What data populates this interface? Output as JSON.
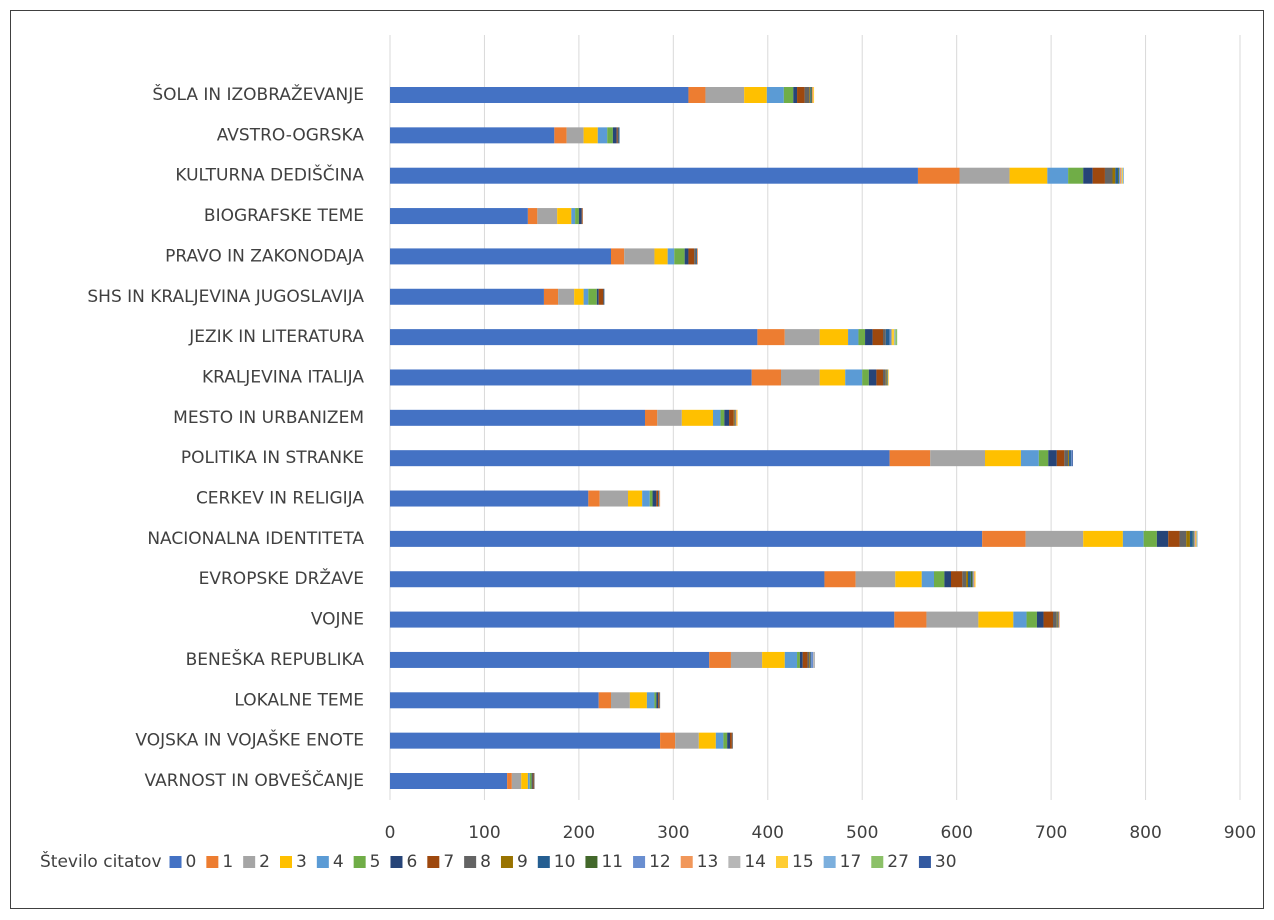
{
  "chart_data": {
    "type": "bar",
    "orientation": "horizontal",
    "stacked": true,
    "categories": [
      "ŠOLA  IN IZOBRAŽEVANJE",
      "AVSTRO-OGRSKA",
      "KULTURNA DEDIŠČINA",
      "BIOGRAFSKE TEME",
      "PRAVO IN ZAKONODAJA",
      "SHS IN KRALJEVINA JUGOSLAVIJA",
      "JEZIK IN LITERATURA",
      "KRALJEVINA ITALIJA",
      "MESTO IN URBANIZEM",
      "POLITIKA IN STRANKE",
      "CERKEV IN RELIGIJA",
      "NACIONALNA IDENTITETA",
      "EVROPSKE DRŽAVE",
      "VOJNE",
      "BENEŠKA REPUBLIKA",
      "LOKALNE TEME",
      "VOJSKA IN VOJAŠKE ENOTE",
      "VARNOST IN OBVEŠČANJE"
    ],
    "legend_title": "Število citatov",
    "series": [
      {
        "name": "0",
        "color": "#4472c4",
        "values": [
          316,
          174,
          559,
          146,
          234,
          163,
          389,
          383,
          270,
          529,
          210,
          627,
          460,
          534,
          338,
          221,
          286,
          124
        ]
      },
      {
        "name": "1",
        "color": "#ed7d31",
        "values": [
          18,
          13,
          44,
          10,
          14,
          15,
          29,
          31,
          13,
          43,
          12,
          46,
          33,
          34,
          23,
          13,
          16,
          5
        ]
      },
      {
        "name": "2",
        "color": "#a5a5a5",
        "values": [
          41,
          18,
          53,
          21,
          32,
          17,
          37,
          41,
          26,
          58,
          30,
          61,
          42,
          55,
          33,
          20,
          25,
          10
        ]
      },
      {
        "name": "3",
        "color": "#ffc000",
        "values": [
          24,
          15,
          40,
          15,
          14,
          10,
          30,
          27,
          33,
          38,
          15,
          42,
          28,
          37,
          24,
          18,
          18,
          7
        ]
      },
      {
        "name": "4",
        "color": "#5b9bd5",
        "values": [
          18,
          10,
          22,
          4,
          7,
          5,
          11,
          18,
          8,
          19,
          8,
          22,
          13,
          14,
          13,
          8,
          8,
          2
        ]
      },
      {
        "name": "5",
        "color": "#70ad47",
        "values": [
          10,
          6,
          16,
          4,
          11,
          9,
          7,
          7,
          4,
          10,
          3,
          14,
          11,
          11,
          3,
          2,
          4,
          2
        ]
      },
      {
        "name": "6",
        "color": "#264478",
        "values": [
          4,
          4,
          10,
          3,
          4,
          2,
          8,
          8,
          5,
          9,
          4,
          12,
          7,
          7,
          3,
          2,
          3,
          1
        ]
      },
      {
        "name": "7",
        "color": "#9e480e",
        "values": [
          8,
          1,
          13,
          1,
          6,
          5,
          11,
          7,
          5,
          8,
          2,
          12,
          12,
          10,
          5,
          1,
          2,
          1
        ]
      },
      {
        "name": "8",
        "color": "#636363",
        "values": [
          5,
          1,
          8,
          0,
          2,
          0,
          3,
          3,
          0,
          4,
          0,
          7,
          4,
          4,
          2,
          1,
          1,
          1
        ]
      },
      {
        "name": "9",
        "color": "#997300",
        "values": [
          1,
          0,
          3,
          0,
          0,
          0,
          0,
          1,
          1,
          1,
          0,
          4,
          2,
          1,
          1,
          0,
          0,
          0
        ]
      },
      {
        "name": "10",
        "color": "#255e91",
        "values": [
          1,
          1,
          3,
          0,
          1,
          1,
          4,
          1,
          1,
          2,
          1,
          3,
          3,
          1,
          1,
          0,
          0,
          0
        ]
      },
      {
        "name": "11",
        "color": "#43682b",
        "values": [
          1,
          0,
          1,
          0,
          0,
          0,
          0,
          0,
          0,
          0,
          0,
          1,
          2,
          0,
          0,
          0,
          0,
          0
        ]
      },
      {
        "name": "12",
        "color": "#698ed0",
        "values": [
          0,
          0,
          1,
          0,
          0,
          0,
          2,
          0,
          0,
          1,
          0,
          1,
          1,
          0,
          2,
          0,
          0,
          0
        ]
      },
      {
        "name": "13",
        "color": "#f1975a",
        "values": [
          1,
          0,
          1,
          0,
          1,
          0,
          0,
          0,
          1,
          0,
          1,
          1,
          1,
          1,
          0,
          0,
          0,
          0
        ]
      },
      {
        "name": "14",
        "color": "#b7b7b7",
        "values": [
          0,
          0,
          1,
          0,
          0,
          0,
          0,
          0,
          0,
          0,
          0,
          0,
          0,
          0,
          2,
          0,
          0,
          0
        ]
      },
      {
        "name": "15",
        "color": "#ffcd33",
        "values": [
          1,
          0,
          1,
          0,
          0,
          0,
          3,
          1,
          1,
          0,
          0,
          1,
          1,
          0,
          0,
          0,
          0,
          0
        ]
      },
      {
        "name": "17",
        "color": "#7cafdd",
        "values": [
          0,
          0,
          1,
          0,
          0,
          0,
          1,
          0,
          0,
          0,
          0,
          1,
          0,
          0,
          0,
          0,
          0,
          0
        ]
      },
      {
        "name": "27",
        "color": "#8cc168",
        "values": [
          0,
          0,
          0,
          0,
          0,
          0,
          2,
          0,
          0,
          0,
          0,
          0,
          0,
          0,
          0,
          0,
          0,
          0
        ]
      },
      {
        "name": "30",
        "color": "#335aa1",
        "values": [
          0,
          0,
          0,
          0,
          0,
          0,
          0,
          0,
          0,
          1,
          0,
          0,
          0,
          0,
          0,
          0,
          0,
          0
        ]
      }
    ],
    "xlim": [
      0,
      900
    ],
    "xticks": [
      0,
      100,
      200,
      300,
      400,
      500,
      600,
      700,
      800,
      900
    ],
    "grid": true,
    "legend": "bottom"
  }
}
